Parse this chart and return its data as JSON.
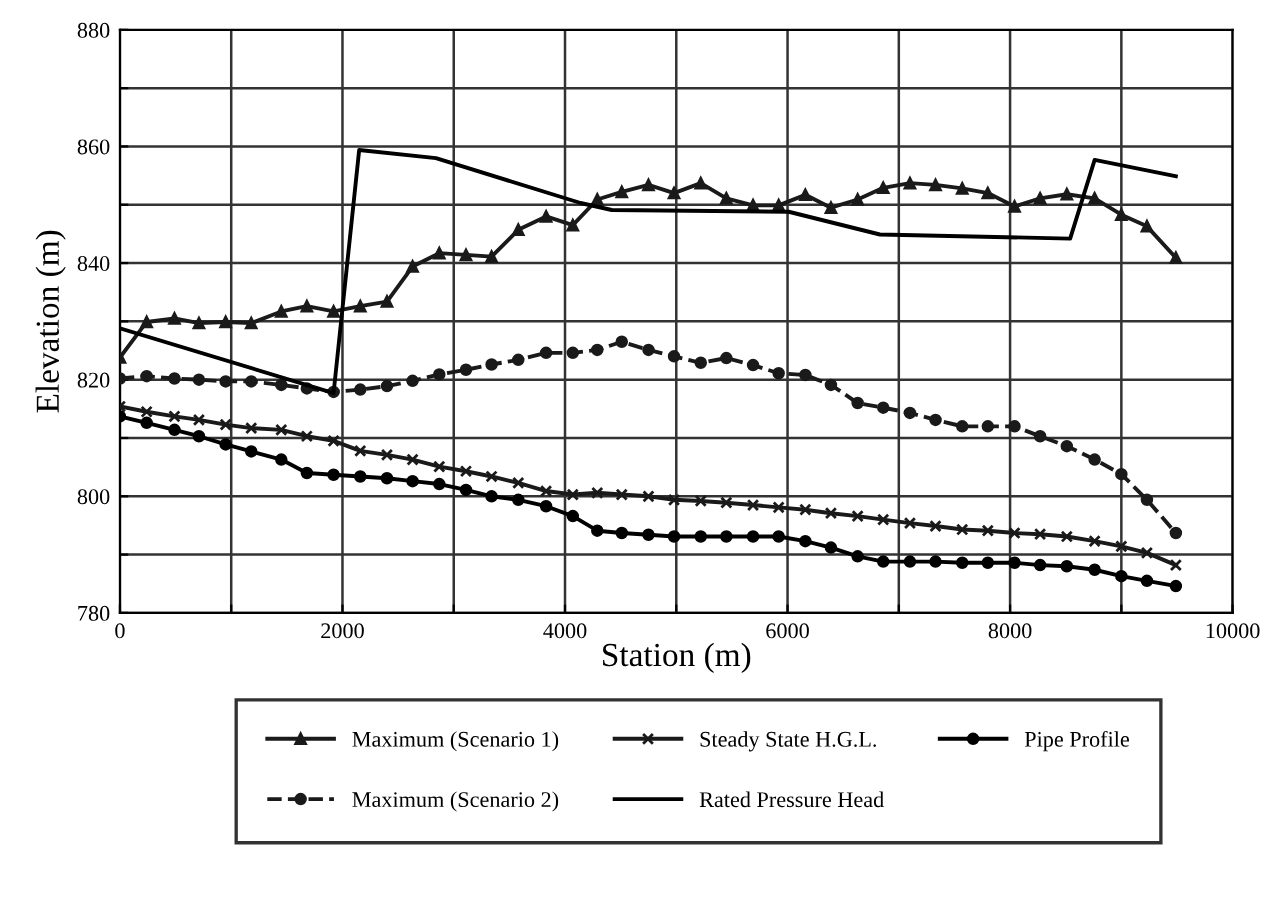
{
  "chart_data": {
    "type": "line",
    "xlabel": "Station (m)",
    "ylabel": "Elevation (m)",
    "xlim": [
      0,
      10000
    ],
    "ylim": [
      780,
      880
    ],
    "xticks": [
      0,
      {
        "value": 1000,
        "label": null
      },
      2000,
      {
        "value": 3000,
        "label": null
      },
      4000,
      {
        "value": 5000,
        "label": null
      },
      6000,
      {
        "value": 7000,
        "label": null
      },
      8000,
      {
        "value": 9000,
        "label": null
      },
      10000
    ],
    "yticks": [
      780,
      {
        "value": 790,
        "label": null
      },
      800,
      {
        "value": 810,
        "label": null
      },
      820,
      {
        "value": 830,
        "label": null
      },
      840,
      {
        "value": 850,
        "label": null
      },
      860,
      {
        "value": 870,
        "label": null
      },
      880
    ],
    "grid": true,
    "legend": "bottom",
    "x": [
      0,
      240,
      490,
      710,
      950,
      1180,
      1450,
      1680,
      1920,
      2160,
      2400,
      2630,
      2870,
      3110,
      3340,
      3580,
      3830,
      4070,
      4290,
      4510,
      4750,
      4980,
      5220,
      5450,
      5690,
      5920,
      6160,
      6390,
      6630,
      6860,
      7100,
      7330,
      7570,
      7800,
      8040,
      8270,
      8510,
      8760,
      9000,
      9230,
      9490
    ],
    "series": [
      {
        "name": "Maximum (Scenario 1)",
        "color": "#1a1a1a",
        "marker": "triangle",
        "values": [
          823.8,
          829.9,
          830.5,
          829.7,
          829.9,
          829.7,
          831.7,
          832.6,
          831.7,
          832.6,
          833.4,
          839.4,
          841.7,
          841.4,
          841.1,
          845.7,
          848.0,
          846.5,
          850.9,
          852.2,
          853.4,
          852.0,
          853.7,
          851.1,
          849.9,
          849.9,
          851.7,
          849.5,
          850.9,
          852.9,
          853.7,
          853.4,
          852.8,
          852.0,
          849.7,
          851.1,
          851.8,
          851.1,
          848.3,
          846.3,
          840.9
        ]
      },
      {
        "name": "Maximum (Scenario 2)",
        "color": "#1a1a1a",
        "marker": "circle",
        "line_style": "dashed",
        "values": [
          820.2,
          820.6,
          820.2,
          820.0,
          819.7,
          819.7,
          819.1,
          818.5,
          817.9,
          818.3,
          818.9,
          819.8,
          820.9,
          821.7,
          822.6,
          823.4,
          824.6,
          824.6,
          825.1,
          826.5,
          825.1,
          824.0,
          822.9,
          823.7,
          822.5,
          821.1,
          820.8,
          819.1,
          816.0,
          815.2,
          814.3,
          813.1,
          812.0,
          812.0,
          812.0,
          810.3,
          808.6,
          806.3,
          803.8,
          799.4,
          793.7
        ]
      },
      {
        "name": "Steady State H.G.L.",
        "color": "#1a1a1a",
        "marker": "cross",
        "values": [
          815.4,
          814.5,
          813.7,
          813.1,
          812.3,
          811.7,
          811.4,
          810.3,
          809.5,
          807.8,
          807.1,
          806.3,
          805.1,
          804.3,
          803.4,
          802.3,
          800.9,
          800.3,
          800.6,
          800.3,
          800.0,
          799.4,
          799.2,
          798.9,
          798.5,
          798.1,
          797.7,
          797.1,
          796.6,
          796.0,
          795.4,
          794.9,
          794.3,
          794.1,
          793.7,
          793.5,
          793.1,
          792.3,
          791.4,
          790.3,
          788.2
        ]
      },
      {
        "name": "Rated Pressure Head",
        "color": "#000000",
        "marker": "none",
        "x": [
          0,
          1920,
          2150,
          2840,
          4140,
          4420,
          6010,
          6830,
          8540,
          8760,
          9490
        ],
        "values": [
          828.8,
          817.7,
          859.4,
          858.0,
          850.3,
          849.1,
          848.8,
          844.9,
          844.2,
          857.7,
          854.9
        ]
      },
      {
        "name": "Pipe Profile",
        "color": "#000000",
        "marker": "circle",
        "values": [
          813.7,
          812.6,
          811.4,
          810.3,
          808.9,
          807.7,
          806.3,
          804.0,
          803.7,
          803.4,
          803.1,
          802.6,
          802.1,
          801.1,
          800.0,
          799.4,
          798.3,
          796.6,
          794.1,
          793.7,
          793.4,
          793.1,
          793.1,
          793.1,
          793.1,
          793.1,
          792.3,
          791.2,
          789.7,
          788.8,
          788.8,
          788.8,
          788.6,
          788.6,
          788.6,
          788.2,
          788.0,
          787.4,
          786.3,
          785.5,
          784.6
        ]
      }
    ]
  }
}
